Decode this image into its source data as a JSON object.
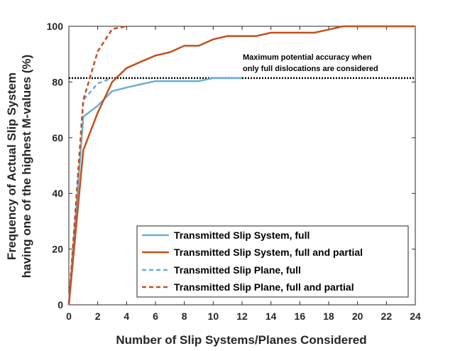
{
  "chart_data": {
    "type": "line",
    "xlabel": "Number of Slip Systems/Planes Considered",
    "ylabel_lines": [
      "Frequency of Actual Slip System",
      "having one of the highest M-values (%)"
    ],
    "xlim": [
      0,
      24
    ],
    "ylim": [
      0,
      100
    ],
    "xticks": [
      0,
      2,
      4,
      6,
      8,
      10,
      12,
      14,
      16,
      18,
      20,
      22,
      24
    ],
    "yticks": [
      0,
      20,
      40,
      60,
      80,
      100
    ],
    "grid": false,
    "legend_position": "bottom-right",
    "series": [
      {
        "name": "Transmitted Slip System, full",
        "color": "#6aaed6",
        "style": "solid",
        "x": [
          0,
          1,
          2,
          3,
          4,
          5,
          6,
          7,
          8,
          9,
          10,
          11,
          12
        ],
        "y": [
          0,
          67.5,
          71.5,
          76.7,
          78,
          79.2,
          80.3,
          80.3,
          80.3,
          80.3,
          81.4,
          81.4,
          81.4
        ]
      },
      {
        "name": "Transmitted Slip System, full and partial",
        "color": "#c4501f",
        "style": "solid",
        "x": [
          0,
          1,
          2,
          3,
          4,
          5,
          6,
          7,
          8,
          9,
          10,
          11,
          12,
          13,
          14,
          15,
          16,
          17,
          18,
          19,
          20,
          21,
          22,
          23,
          24
        ],
        "y": [
          0,
          55.5,
          69,
          80,
          85,
          87.3,
          89.5,
          90.7,
          93,
          93,
          95.3,
          96.5,
          96.5,
          96.5,
          97.7,
          97.7,
          97.7,
          97.7,
          98.8,
          100,
          100,
          100,
          100,
          100,
          100
        ]
      },
      {
        "name": "Transmitted Slip Plane, full",
        "color": "#6aaed6",
        "style": "dashed",
        "x": [
          0,
          1,
          2,
          3
        ],
        "y": [
          0,
          73.5,
          79.5,
          81.4
        ]
      },
      {
        "name": "Transmitted Slip Plane, full and partial",
        "color": "#c4501f",
        "style": "dashed",
        "x": [
          0,
          1,
          2,
          3,
          4
        ],
        "y": [
          0,
          73.5,
          91,
          99,
          100
        ]
      }
    ],
    "reference_line": {
      "y": 81.4,
      "color": "#000000",
      "style": "dotted"
    },
    "annotation": [
      "Maximum potential accuracy when",
      "only full dislocations are considered"
    ]
  }
}
